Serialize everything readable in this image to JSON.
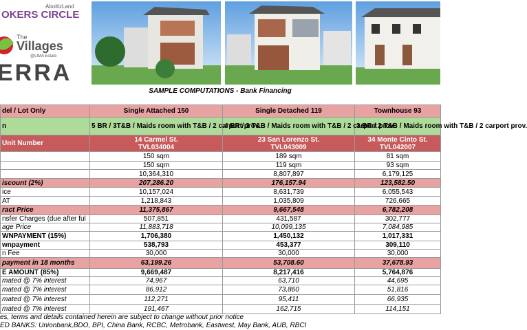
{
  "header": {
    "brand": "AboitizLand",
    "circle": "OKERS CIRCLE",
    "the": "The",
    "villages": "Villages",
    "estate": "@LIMA Estate",
    "project": "ERRA"
  },
  "title": "SAMPLE COMPUTATIONS - Bank Financing",
  "table": {
    "rows": [
      {
        "label": "del /  Lot Only",
        "values": [
          "Single Attached 150",
          "Single Detached 119",
          "Townhouse 93"
        ]
      },
      {
        "label": "n",
        "values": [
          "5 BR / 3T&B / Maids room with  T&B / 2 carport prov.",
          "4 BR  / 3 T&B / Maids room with T&B / 2 carport prov.",
          "3 BR  / 2 T&B / Maids room with T&B / 2 carport prov."
        ]
      },
      {
        "label": "Unit Number",
        "values": [
          [
            "14 Carmel St.",
            "TVL034004"
          ],
          [
            "23 San Lorenzo St.",
            "TVL043009"
          ],
          [
            "34 Monte Cinto St.",
            "TVL042007"
          ]
        ]
      },
      {
        "values": [
          "150 sqm",
          "189 sqm",
          "81 sqm"
        ]
      },
      {
        "values": [
          "150 sqm",
          "119 sqm",
          "93 sqm"
        ]
      },
      {
        "values": [
          "10,364,310",
          "8,807,897",
          "6,179,125"
        ]
      },
      {
        "label": "iscount (2%)",
        "values": [
          "207,286.20",
          "176,157.94",
          "123,582.50"
        ]
      },
      {
        "label": "ice",
        "values": [
          "10,157,024",
          "8,631,739",
          "6,055,543"
        ]
      },
      {
        "label": "AT",
        "values": [
          "1,218,843",
          "1,035,809",
          "726,665"
        ]
      },
      {
        "label": "ract Price",
        "values": [
          "11,375,867",
          "9,667,548",
          "6,782,208"
        ]
      },
      {
        "label": "nsfer Charges (due after ful",
        "values": [
          "507,851",
          "431,587",
          "302,777"
        ]
      },
      {
        "label": "age Price",
        "values": [
          "11,883,718",
          "10,099,135",
          "7,084,985"
        ]
      },
      {
        "label": "WNPAYMENT (15%)",
        "values": [
          "1,706,380",
          "1,450,132",
          "1,017,331"
        ]
      },
      {
        "label": "wnpayment",
        "values": [
          "538,793",
          "453,377",
          "309,110"
        ]
      },
      {
        "label": "n Fee",
        "values": [
          "30,000",
          "30,000",
          "30,000"
        ]
      },
      {
        "label": "payment in 18 months",
        "values": [
          "63,199.26",
          "53,708.60",
          "37,678.93"
        ]
      },
      {
        "label": "E AMOUNT (85%)",
        "values": [
          "9,669,487",
          "8,217,416",
          "5,764,876"
        ]
      },
      {
        "label": "mated @ 7% interest",
        "values": [
          "74,967",
          "63,710",
          "44,695"
        ]
      },
      {
        "label": "mated @ 7% interest",
        "values": [
          "86,912",
          "73,860",
          "51,816"
        ]
      },
      {
        "label": "mated @ 7% interest",
        "values": [
          "112,271",
          "95,411",
          "66,935"
        ]
      },
      {
        "label": "mated @ 7% interest",
        "values": [
          "191,467",
          "162,715",
          "114,151"
        ]
      }
    ]
  },
  "notes": [
    "es, terms and details contained herein are subject to change without prior notice",
    "ED BANKS: Unionbank,BDO, BPI, China Bank, RCBC, Metrobank, Eastwest, May Bank, AUB, RBCI"
  ]
}
